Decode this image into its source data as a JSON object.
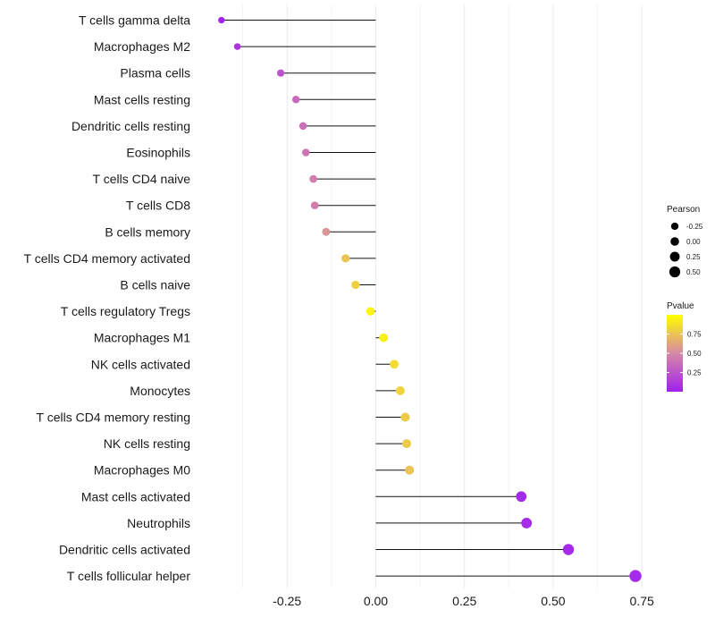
{
  "chart_data": {
    "type": "lollipop",
    "categories": [
      "T cells gamma delta",
      "Macrophages M2",
      "Plasma cells",
      "Mast cells resting",
      "Dendritic cells resting",
      "Eosinophils",
      "T cells CD4 naive",
      "T cells CD8",
      "B cells memory",
      "T cells CD4 memory activated",
      "B cells naive",
      "T cells regulatory  Tregs ",
      "Macrophages M1",
      "NK cells activated",
      "Monocytes",
      "T cells CD4 memory resting",
      "NK cells resting",
      "Macrophages M0",
      "Mast cells activated",
      "Neutrophils",
      "Dendritic cells activated",
      "T cells follicular helper"
    ],
    "values": [
      -0.435,
      -0.39,
      -0.268,
      -0.225,
      -0.205,
      -0.197,
      -0.176,
      -0.172,
      -0.14,
      -0.085,
      -0.057,
      -0.015,
      0.022,
      0.052,
      0.069,
      0.083,
      0.087,
      0.095,
      0.41,
      0.425,
      0.543,
      0.732
    ],
    "pvalues": [
      0.02,
      0.1,
      0.25,
      0.35,
      0.38,
      0.42,
      0.45,
      0.45,
      0.55,
      0.75,
      0.8,
      0.95,
      0.93,
      0.85,
      0.82,
      0.78,
      0.78,
      0.75,
      0.05,
      0.05,
      0.05,
      0.05
    ],
    "xlim": [
      -0.5,
      0.8
    ],
    "xticks": [
      -0.25,
      0.0,
      0.25,
      0.5,
      0.75
    ],
    "xtick_labels": [
      "-0.25",
      "0.00",
      "0.25",
      "0.50",
      "0.75"
    ],
    "xlabel": "",
    "ylabel": "",
    "size_legend": {
      "title": "Pearson",
      "values": [
        -0.25,
        0.0,
        0.25,
        0.5
      ],
      "labels": [
        "-0.25",
        "0.00",
        "0.25",
        "0.50"
      ]
    },
    "color_legend": {
      "title": "Pvalue",
      "ticks": [
        0.25,
        0.5,
        0.75
      ],
      "labels": [
        "0.25",
        "0.50",
        "0.75"
      ],
      "low_color": "#a020f0",
      "high_color": "#ffff00"
    }
  }
}
